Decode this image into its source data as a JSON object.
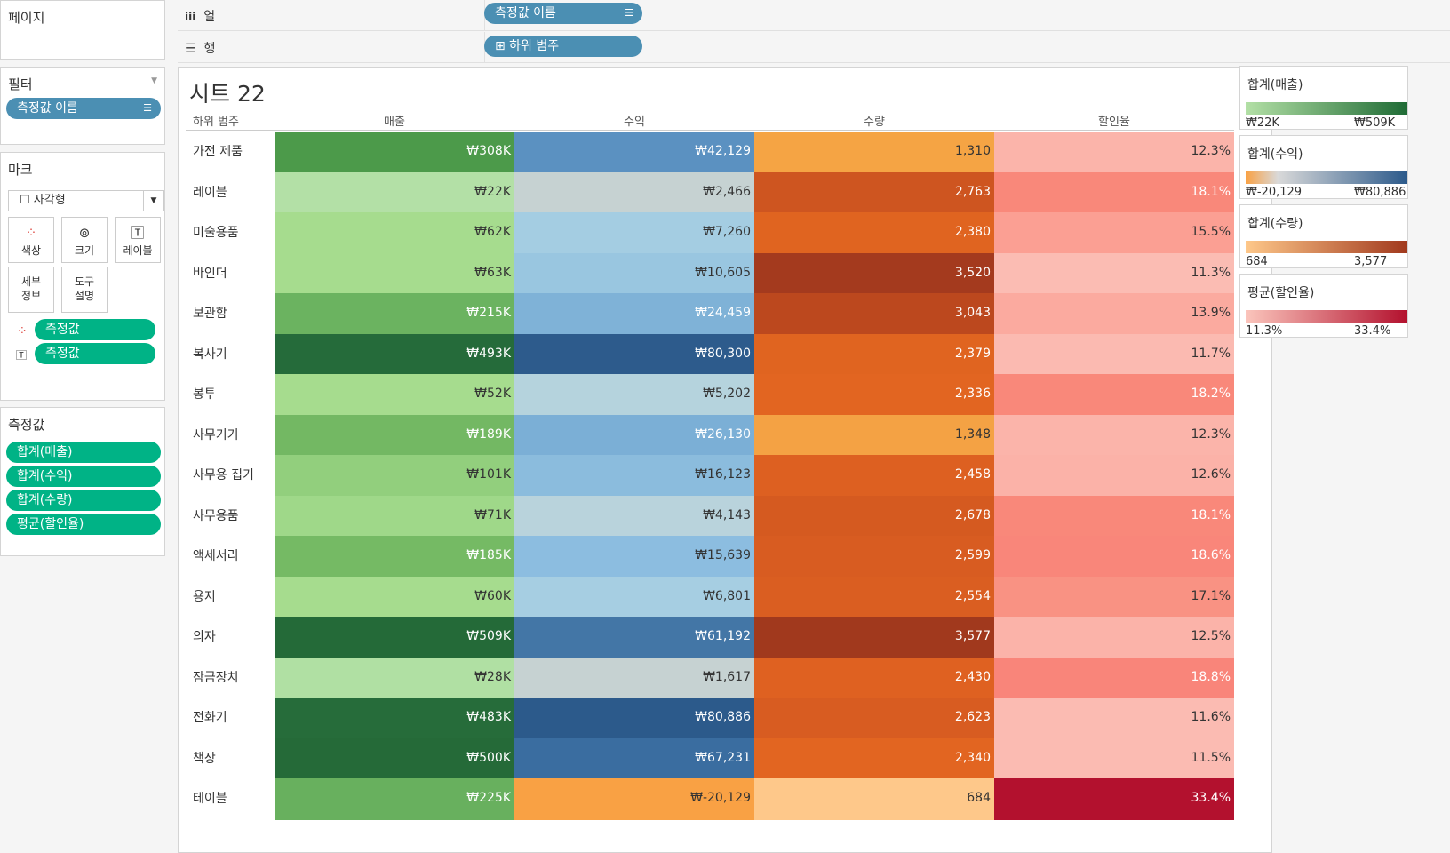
{
  "pages_panel": {
    "title": "페이지"
  },
  "shelves": {
    "columns_label": "열",
    "columns_pill": "측정값 이름",
    "rows_label": "행",
    "rows_pill": "⊞ 하위 범주"
  },
  "filters_panel": {
    "title": "필터",
    "pill": "측정값 이름"
  },
  "marks_panel": {
    "title": "마크",
    "mark_type": "사각형",
    "buttons": [
      "색상",
      "크기",
      "레이블",
      "세부\n정보",
      "도구\n설명"
    ],
    "fields": [
      "측정값",
      "측정값"
    ]
  },
  "measures_panel": {
    "title": "측정값",
    "items": [
      "합계(매출)",
      "합계(수익)",
      "합계(수량)",
      "평균(할인율)"
    ]
  },
  "sheet": {
    "title": "시트 22",
    "row_header": "하위 범주",
    "columns": [
      "매출",
      "수익",
      "수량",
      "할인율"
    ],
    "rows": [
      {
        "label": "가전 제품",
        "sales": "₩308K",
        "profit": "₩42,129",
        "qty": "1,310",
        "discount": "12.3%",
        "c": [
          "#4c9a4a",
          "#5b91c1",
          "#f5a444",
          "#fbb4aa"
        ]
      },
      {
        "label": "레이블",
        "sales": "₩22K",
        "profit": "₩2,466",
        "qty": "2,763",
        "discount": "18.1%",
        "c": [
          "#b3e0a6",
          "#c6d2d2",
          "#ce5520",
          "#f9887a"
        ]
      },
      {
        "label": "미술용품",
        "sales": "₩62K",
        "profit": "₩7,260",
        "qty": "2,380",
        "discount": "15.5%",
        "c": [
          "#a6dc8e",
          "#a4cde2",
          "#e06420",
          "#fb9f93"
        ]
      },
      {
        "label": "바인더",
        "sales": "₩63K",
        "profit": "₩10,605",
        "qty": "3,520",
        "discount": "11.3%",
        "c": [
          "#a6dc8e",
          "#99c6e0",
          "#a43a1e",
          "#fbbcb3"
        ]
      },
      {
        "label": "보관함",
        "sales": "₩215K",
        "profit": "₩24,459",
        "qty": "3,043",
        "discount": "13.9%",
        "c": [
          "#6bb360",
          "#7fb2d7",
          "#bc481e",
          "#fbaa9f"
        ]
      },
      {
        "label": "복사기",
        "sales": "₩493K",
        "profit": "₩80,300",
        "qty": "2,379",
        "discount": "11.7%",
        "c": [
          "#256b3a",
          "#2d5b8c",
          "#e06420",
          "#fbbab1"
        ]
      },
      {
        "label": "봉투",
        "sales": "₩52K",
        "profit": "₩5,202",
        "qty": "2,336",
        "discount": "18.2%",
        "c": [
          "#a6dc8e",
          "#b5d3dd",
          "#e26521",
          "#f9887a"
        ]
      },
      {
        "label": "사무기기",
        "sales": "₩189K",
        "profit": "₩26,130",
        "qty": "1,348",
        "discount": "12.3%",
        "c": [
          "#73b863",
          "#7bafd6",
          "#f4a244",
          "#fbb4aa"
        ]
      },
      {
        "label": "사무용 집기",
        "sales": "₩101K",
        "profit": "₩16,123",
        "qty": "2,458",
        "discount": "12.6%",
        "c": [
          "#92cf7d",
          "#8bbcdd",
          "#dd6021",
          "#fbb2a8"
        ]
      },
      {
        "label": "사무용품",
        "sales": "₩71K",
        "profit": "₩4,143",
        "qty": "2,678",
        "discount": "18.1%",
        "c": [
          "#9fd889",
          "#b9d3dc",
          "#d55a20",
          "#f9887a"
        ]
      },
      {
        "label": "액세서리",
        "sales": "₩185K",
        "profit": "₩15,639",
        "qty": "2,599",
        "discount": "18.6%",
        "c": [
          "#75ba64",
          "#8cbde0",
          "#d85c21",
          "#f9867a"
        ]
      },
      {
        "label": "용지",
        "sales": "₩60K",
        "profit": "₩6,801",
        "qty": "2,554",
        "discount": "17.1%",
        "c": [
          "#a6dc8e",
          "#a6cee2",
          "#da5e21",
          "#f99283"
        ]
      },
      {
        "label": "의자",
        "sales": "₩509K",
        "profit": "₩61,192",
        "qty": "3,577",
        "discount": "12.5%",
        "c": [
          "#246a38",
          "#4376a6",
          "#a1391d",
          "#fbb3a9"
        ]
      },
      {
        "label": "잠금장치",
        "sales": "₩28K",
        "profit": "₩1,617",
        "qty": "2,430",
        "discount": "18.8%",
        "c": [
          "#b0e0a3",
          "#c6d2d2",
          "#df6121",
          "#f9857a"
        ]
      },
      {
        "label": "전화기",
        "sales": "₩483K",
        "profit": "₩80,886",
        "qty": "2,623",
        "discount": "11.6%",
        "c": [
          "#266c3a",
          "#2c5a8b",
          "#d85c21",
          "#fbbbb2"
        ]
      },
      {
        "label": "책장",
        "sales": "₩500K",
        "profit": "₩67,231",
        "qty": "2,340",
        "discount": "11.5%",
        "c": [
          "#256a38",
          "#3a6da0",
          "#e26521",
          "#fbbbb2"
        ]
      },
      {
        "label": "테이블",
        "sales": "₩225K",
        "profit": "₩-20,129",
        "qty": "684",
        "discount": "33.4%",
        "c": [
          "#68b05e",
          "#f9a144",
          "#fec88a",
          "#b3112e"
        ]
      }
    ]
  },
  "legends": [
    {
      "title": "합계(매출)",
      "min": "₩22K",
      "max": "₩509K",
      "from": "#b3e0a6",
      "to": "#1f6b35"
    },
    {
      "title": "합계(수익)",
      "min": "₩-20,129",
      "max": "₩80,886",
      "from": "#f9a144",
      "to": "#2c5a8b",
      "mid": "#d9d9d9"
    },
    {
      "title": "합계(수량)",
      "min": "684",
      "max": "3,577",
      "from": "#fec88a",
      "to": "#a1391d"
    },
    {
      "title": "평균(할인율)",
      "min": "11.3%",
      "max": "33.4%",
      "from": "#fbc5bc",
      "to": "#b3112e"
    }
  ]
}
